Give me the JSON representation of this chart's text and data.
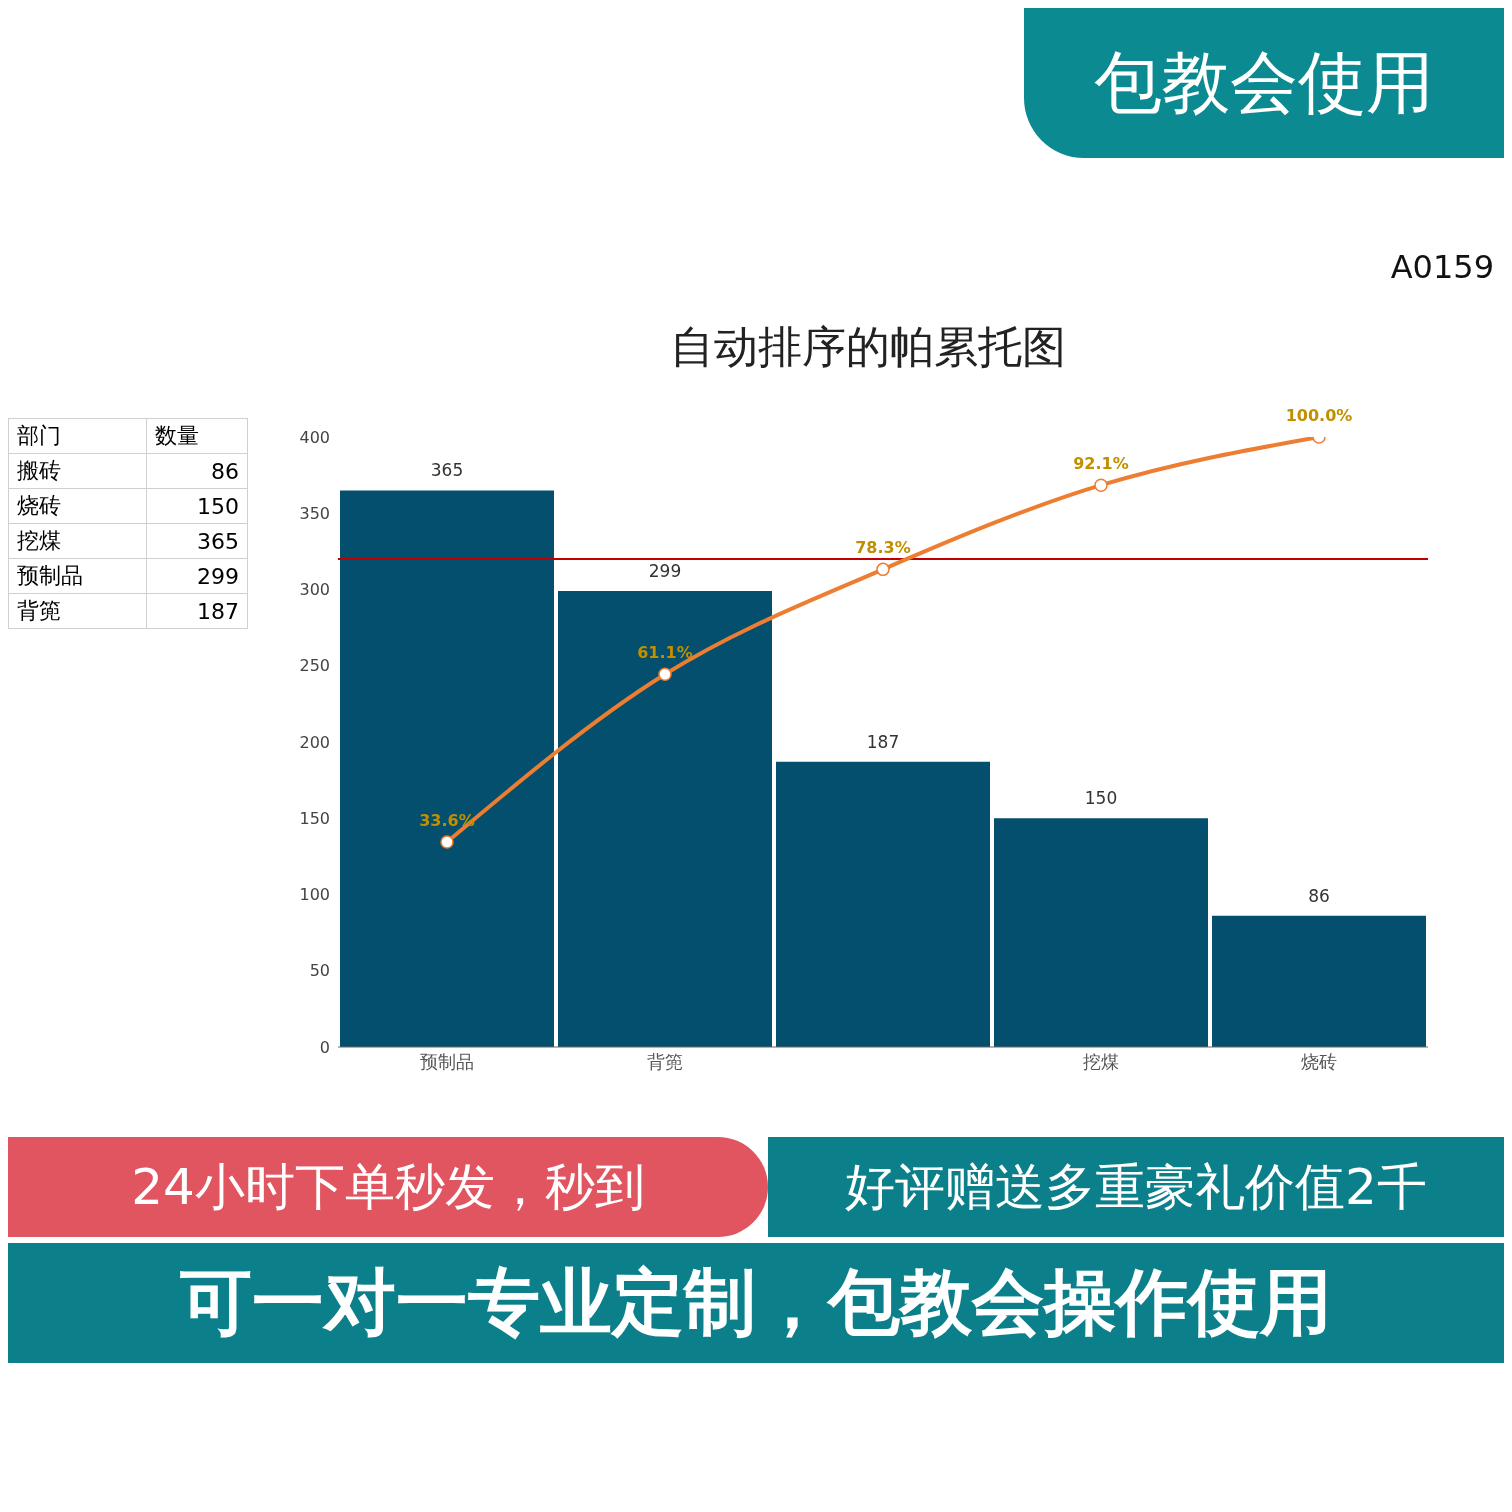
{
  "chart_data": [
    {
      "type": "bar",
      "title": "自动排序的帕累托图",
      "categories": [
        "预制品",
        "背篼",
        null,
        "挖煤",
        "烧砖"
      ],
      "values": [
        365,
        299,
        187,
        150,
        86
      ],
      "color": "#044e6e",
      "data_labels": true,
      "ylim": [
        0,
        400
      ],
      "yticks": [
        0,
        50,
        100,
        150,
        200,
        250,
        300,
        350,
        400
      ],
      "grid": false,
      "legend": false,
      "series": [
        {
          "type": "line",
          "axis": "y2",
          "color": "#ed7d31",
          "marker": "circle",
          "values": [
            33.6,
            61.1,
            78.3,
            92.1,
            100
          ],
          "value_labels": [
            "33.6%",
            "61.1%",
            "78.3%",
            "92.1%",
            "100.0%"
          ]
        }
      ],
      "ref_lines": [
        {
          "axis": "y",
          "value": 320,
          "color": "#c00000"
        }
      ],
      "annotations": [
        "包教会使用",
        "A0159",
        "24小时下单秒发，秒到",
        "好评赠送多重豪礼价值2千",
        "可一对一专业定制，包教会操作使用"
      ]
    },
    {
      "type": "other",
      "xlabel": "部门",
      "ylabel": "数量",
      "categories": [
        "搬砖",
        "烧砖",
        "挖煤",
        "预制品",
        "背篼"
      ],
      "values": [
        86,
        150,
        365,
        299,
        187
      ],
      "data_labels": true
    }
  ]
}
